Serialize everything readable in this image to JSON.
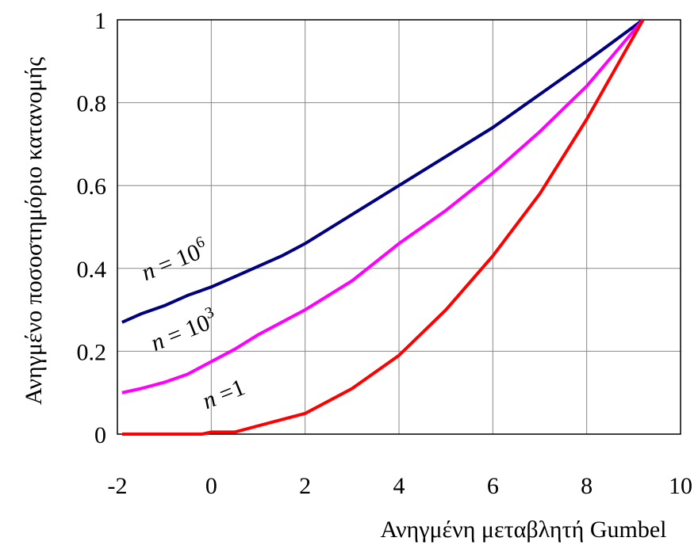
{
  "chart_data": {
    "type": "line",
    "title": "",
    "xlabel": "Ανηγμένη μεταβλητή Gumbel",
    "ylabel": "Ανηγμένο ποσοστημόριο κατανομής",
    "xlim": [
      -2,
      10
    ],
    "ylim": [
      0,
      1
    ],
    "x_ticks": [
      "-2",
      "0",
      "2",
      "4",
      "6",
      "8",
      "10"
    ],
    "y_ticks": [
      "0",
      "0.2",
      "0.4",
      "0.6",
      "0.8",
      "1"
    ],
    "grid": true,
    "legend": "none",
    "series": [
      {
        "color": "#000080",
        "x": [
          -1.9,
          -1.5,
          -1.0,
          -0.5,
          0.0,
          0.5,
          1.0,
          1.5,
          2.0,
          3.0,
          4.0,
          5.0,
          6.0,
          7.0,
          8.0,
          9.2
        ],
        "y": [
          0.27,
          0.29,
          0.31,
          0.335,
          0.355,
          0.38,
          0.405,
          0.43,
          0.46,
          0.53,
          0.6,
          0.67,
          0.74,
          0.82,
          0.9,
          1.0
        ]
      },
      {
        "color": "#FF00FF",
        "x": [
          -1.9,
          -1.5,
          -1.0,
          -0.5,
          0.0,
          0.5,
          1.0,
          1.5,
          2.0,
          3.0,
          4.0,
          5.0,
          6.0,
          7.0,
          8.0,
          9.2
        ],
        "y": [
          0.1,
          0.11,
          0.125,
          0.145,
          0.175,
          0.205,
          0.24,
          0.27,
          0.3,
          0.37,
          0.46,
          0.54,
          0.63,
          0.73,
          0.84,
          1.0
        ]
      },
      {
        "color": "#FF0000",
        "x": [
          -1.9,
          -1.0,
          -0.2,
          0.0,
          0.5,
          1.0,
          1.5,
          2.0,
          3.0,
          4.0,
          5.0,
          6.0,
          7.0,
          8.0,
          8.6,
          9.2
        ],
        "y": [
          0.0,
          0.0,
          0.0,
          0.005,
          0.005,
          0.02,
          0.035,
          0.05,
          0.11,
          0.19,
          0.3,
          0.43,
          0.58,
          0.76,
          0.88,
          1.0
        ]
      }
    ],
    "annotations": [
      {
        "base": "n",
        "rest": " = 10",
        "sup": "6",
        "x": -1.4,
        "y": 0.37
      },
      {
        "base": "n",
        "rest": " = 10",
        "sup": "3",
        "x": -1.2,
        "y": 0.2
      },
      {
        "base": "n",
        "rest": " =1",
        "sup": "",
        "x": -0.1,
        "y": 0.06
      }
    ]
  }
}
